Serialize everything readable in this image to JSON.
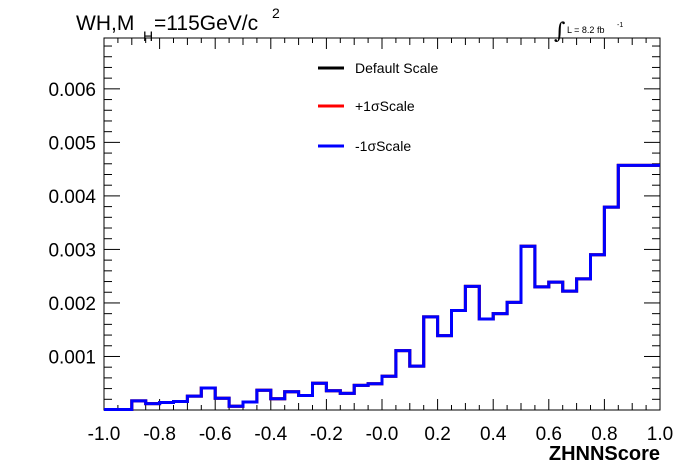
{
  "title": {
    "main": "WH,M",
    "sub": "H",
    "rest": "=115GeV/c",
    "sup": "2"
  },
  "lumi": {
    "integral": "∫",
    "text": "L = 8.2 fb",
    "sup": "-1"
  },
  "chart_data": {
    "type": "histogram",
    "xlabel": "ZHNNScore",
    "ylabel": "",
    "xlim": [
      -1.0,
      1.0
    ],
    "ylim": [
      0,
      0.00695
    ],
    "x_ticks": [
      "-1.0",
      "-0.8",
      "-0.6",
      "-0.4",
      "-0.2",
      "-0.0",
      "0.2",
      "0.4",
      "0.6",
      "0.8",
      "1.0"
    ],
    "y_ticks": [
      "0.001",
      "0.002",
      "0.003",
      "0.004",
      "0.005",
      "0.006"
    ],
    "bin_edges": [
      -1.0,
      -0.95,
      -0.9,
      -0.85,
      -0.8,
      -0.75,
      -0.7,
      -0.65,
      -0.6,
      -0.55,
      -0.5,
      -0.45,
      -0.4,
      -0.35,
      -0.3,
      -0.25,
      -0.2,
      -0.15,
      -0.1,
      -0.05,
      0.0,
      0.05,
      0.1,
      0.15,
      0.2,
      0.25,
      0.3,
      0.35,
      0.4,
      0.45,
      0.5,
      0.55,
      0.6,
      0.65,
      0.7,
      0.75,
      0.8,
      0.85,
      0.9,
      0.95,
      1.0
    ],
    "series": [
      {
        "name": "Default Scale",
        "color": "#000000",
        "values": [
          1e-05,
          1e-05,
          0.00017,
          0.00012,
          0.00014,
          0.00016,
          0.00026,
          0.00041,
          0.00022,
          7e-05,
          0.00015,
          0.00037,
          0.00021,
          0.00034,
          0.00027,
          0.0005,
          0.00036,
          0.00031,
          0.00046,
          0.00049,
          0.00063,
          0.00111,
          0.00082,
          0.00174,
          0.00139,
          0.00186,
          0.00231,
          0.0017,
          0.0018,
          0.00201,
          0.00306,
          0.0023,
          0.00239,
          0.00222,
          0.00245,
          0.0029,
          0.00379,
          0.00457,
          0.00457,
          0.00457
        ]
      },
      {
        "name": "+1σScale",
        "color": "#ff0000",
        "values": [
          1e-05,
          1e-05,
          0.00017,
          0.00012,
          0.00014,
          0.00016,
          0.00026,
          0.00041,
          0.00022,
          7e-05,
          0.00015,
          0.00037,
          0.00021,
          0.00034,
          0.00027,
          0.0005,
          0.00036,
          0.00031,
          0.00046,
          0.00049,
          0.00063,
          0.00111,
          0.00082,
          0.00174,
          0.00139,
          0.00186,
          0.00231,
          0.0017,
          0.0018,
          0.00201,
          0.00306,
          0.0023,
          0.00239,
          0.00222,
          0.00245,
          0.0029,
          0.00379,
          0.00457,
          0.00457,
          0.00457
        ]
      },
      {
        "name": "-1σScale",
        "color": "#0000ff",
        "values": [
          1e-05,
          1e-05,
          0.00017,
          0.00012,
          0.00014,
          0.00016,
          0.00026,
          0.00041,
          0.00022,
          7e-05,
          0.00015,
          0.00037,
          0.00021,
          0.00034,
          0.00027,
          0.0005,
          0.00036,
          0.00031,
          0.00046,
          0.00049,
          0.00063,
          0.00111,
          0.00082,
          0.00174,
          0.00139,
          0.00186,
          0.00231,
          0.0017,
          0.0018,
          0.00201,
          0.00306,
          0.0023,
          0.00239,
          0.00222,
          0.00245,
          0.0029,
          0.00379,
          0.00457,
          0.00457,
          0.00457
        ]
      }
    ],
    "legend_position": "top-center",
    "grid": false
  }
}
